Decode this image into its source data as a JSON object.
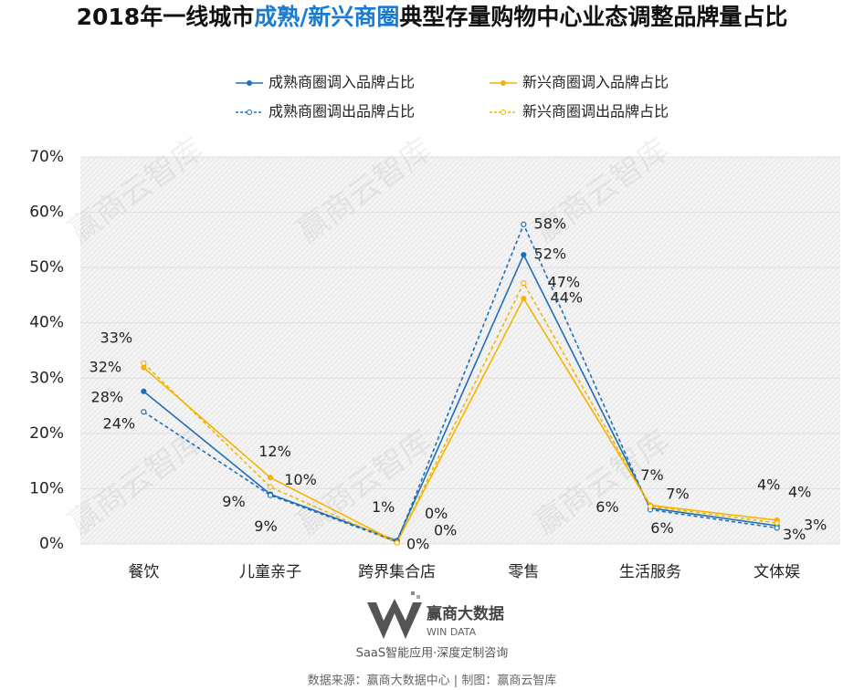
{
  "chart_data": {
    "type": "line",
    "title_parts": [
      {
        "text": "2018年一线城市",
        "color": "#111111"
      },
      {
        "text": "成熟/新兴商圈",
        "color": "#1a7bd0"
      },
      {
        "text": "典型存量购物中心业态调整品牌量占比",
        "color": "#111111"
      }
    ],
    "categories": [
      "餐饮",
      "儿童亲子",
      "跨界集合店",
      "零售",
      "生活服务",
      "文体娱"
    ],
    "series": [
      {
        "name": "成熟商圈调入品牌占比",
        "color": "#1f6fb8",
        "dashed": false,
        "values": [
          27.6,
          9.0,
          0.6,
          52.3,
          6.5,
          3.3
        ],
        "value_labels": [
          "28%",
          "9%",
          "1%",
          "52%",
          "6%",
          "3%"
        ]
      },
      {
        "name": "新兴商圈调入品牌占比",
        "color": "#f5b400",
        "dashed": false,
        "values": [
          31.9,
          12.0,
          0.3,
          44.4,
          7.0,
          4.3
        ],
        "value_labels": [
          "32%",
          "12%",
          "0%",
          "44%",
          "7%",
          "4%"
        ]
      },
      {
        "name": "成熟商圈调出品牌占比",
        "color": "#1f6fb8",
        "dashed": true,
        "values": [
          23.9,
          8.8,
          0.4,
          57.8,
          6.2,
          2.9
        ],
        "value_labels": [
          "24%",
          "9%",
          "0%",
          "58%",
          "6%",
          "3%"
        ]
      },
      {
        "name": "新兴商圈调出品牌占比",
        "color": "#f5b400",
        "dashed": true,
        "values": [
          32.7,
          10.3,
          0.2,
          47.2,
          6.8,
          3.8
        ],
        "value_labels": [
          "33%",
          "10%",
          "0%",
          "47%",
          "7%",
          "4%"
        ]
      }
    ],
    "ylim": [
      0,
      70
    ],
    "yticks": [
      {
        "value": 0,
        "label": "0%"
      },
      {
        "value": 10,
        "label": "10%"
      },
      {
        "value": 20,
        "label": "20%"
      },
      {
        "value": 30,
        "label": "30%"
      },
      {
        "value": 40,
        "label": "40%"
      },
      {
        "value": 50,
        "label": "50%"
      },
      {
        "value": 60,
        "label": "60%"
      },
      {
        "value": 70,
        "label": "70%"
      }
    ],
    "grid": true,
    "watermark": "赢商云智库",
    "logo_name": "赢商大数据",
    "logo_sub": "WIN DATA",
    "slogan": "SaaS智能应用·深度定制咨询",
    "source": "数据来源：赢商大数据中心 | 制图：赢商云智库"
  }
}
